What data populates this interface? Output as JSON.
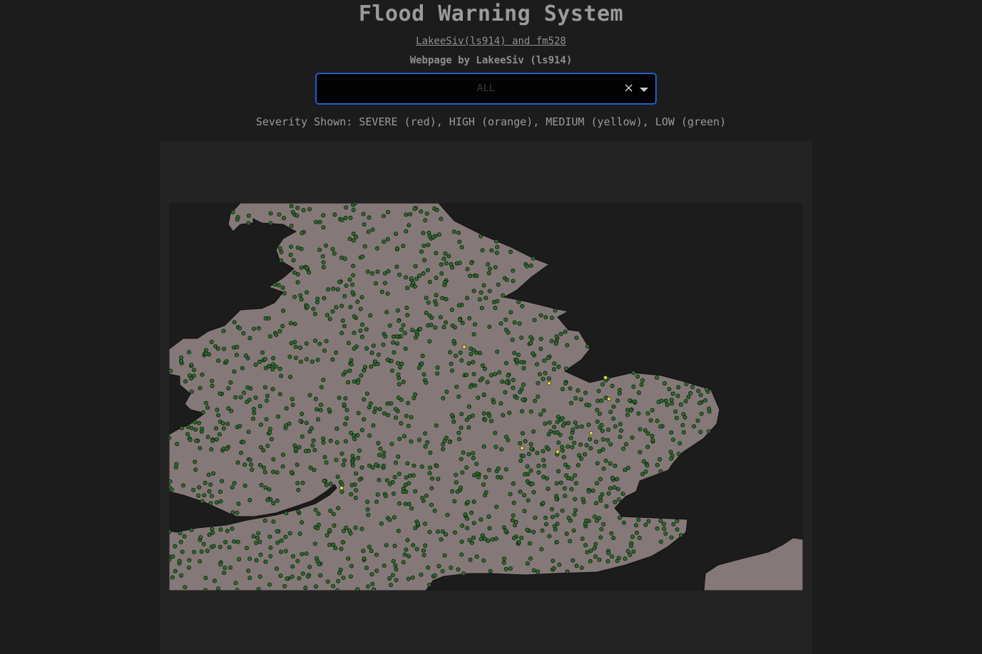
{
  "header": {
    "title": "Flood Warning System",
    "authors_link": "LakeeSiv(ls914) and fm528",
    "byline": "Webpage by LakeeSiv (ls914)"
  },
  "filter": {
    "selected_value": "ALL",
    "clear_icon": "close-icon",
    "arrow_icon": "chevron-down-icon"
  },
  "legend": {
    "severity_text": "Severity Shown: SEVERE (red), HIGH (orange), MEDIUM (yellow), LOW (green)"
  },
  "map": {
    "colors": {
      "sea": "#1c1c1c",
      "land": "#857878",
      "low": "#2e6b2e",
      "medium": "#d8d84a",
      "high": "#e08a2a",
      "severe": "#d83030"
    }
  }
}
